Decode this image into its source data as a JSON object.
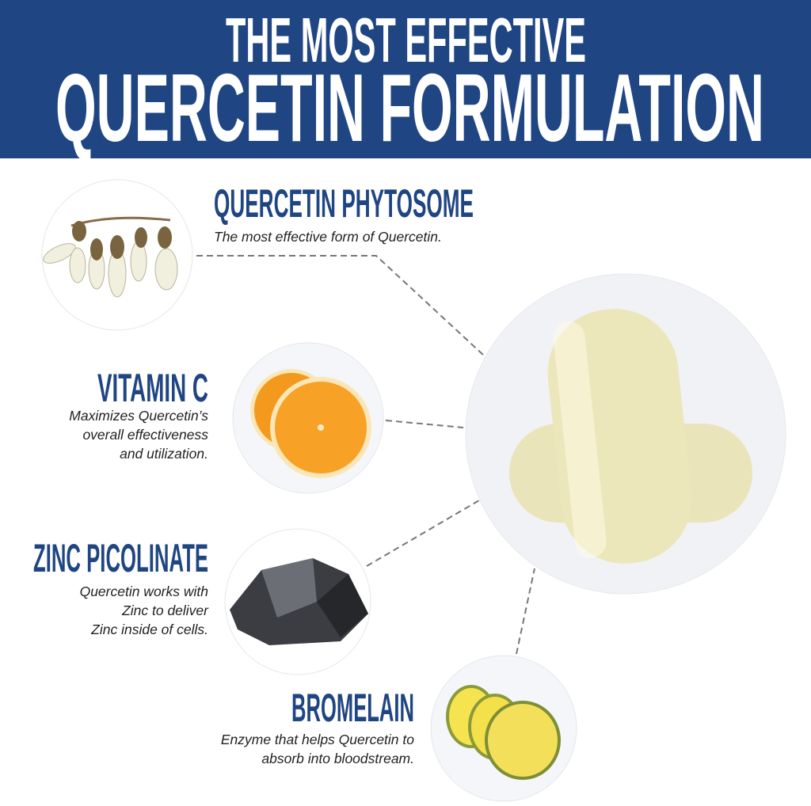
{
  "header": {
    "line1": "THE MOST EFFECTIVE",
    "line2": "QUERCETIN FORMULATION",
    "color": "#1f4583"
  },
  "ingredients": [
    {
      "title": "QUERCETIN PHYTOSOME",
      "desc": [
        "The most effective form of Quercetin."
      ],
      "icon": "flower-buds-image"
    },
    {
      "title": "VITAMIN C",
      "desc": [
        "Maximizes Quercetin’s",
        "overall effectiveness",
        "and utilization."
      ],
      "icon": "orange-slices-image"
    },
    {
      "title": "ZINC PICOLINATE",
      "desc": [
        "Quercetin works with",
        "Zinc to deliver",
        "Zinc inside of cells."
      ],
      "icon": "zinc-rock-image"
    },
    {
      "title": "BROMELAIN",
      "desc": [
        "Enzyme that helps Quercetin to",
        "absorb into bloodstream."
      ],
      "icon": "pineapple-slices-image"
    }
  ],
  "product_image": "capsules-image"
}
